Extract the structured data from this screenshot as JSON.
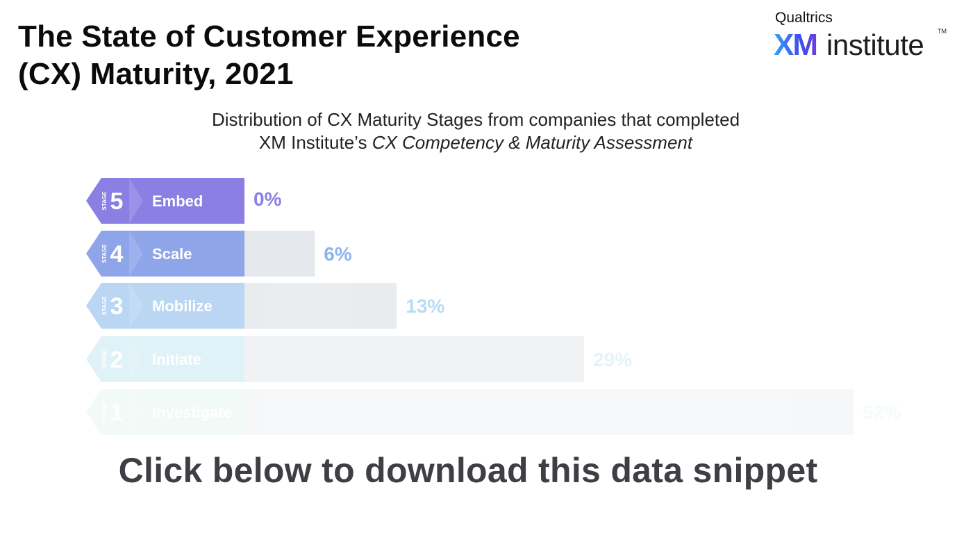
{
  "title": {
    "line1": "The State of Customer Experience",
    "line2": "(CX) Maturity, 2021"
  },
  "logo": {
    "brand": "Qualtrics",
    "xm": "XM",
    "name": "institute",
    "tm": "TM"
  },
  "subtitle": {
    "line1": "Distribution of CX Maturity Stages from companies that completed",
    "line2_prefix": "XM Institute’s ",
    "line2_italic": "CX Competency & Maturity Assessment"
  },
  "chart_data": {
    "type": "bar",
    "orientation": "horizontal",
    "categories": [
      "Embed",
      "Scale",
      "Mobilize",
      "Initiate",
      "Investigate"
    ],
    "stages": [
      5,
      4,
      3,
      2,
      1
    ],
    "stage_tag": "STAGE",
    "values": [
      0,
      6,
      13,
      29,
      52
    ],
    "value_labels": [
      "0%",
      "6%",
      "13%",
      "29%",
      "52%"
    ],
    "unit": "%",
    "xlim": [
      0,
      52
    ],
    "colors": {
      "tab": [
        "#8b7fe4",
        "#8fa5ea",
        "#a9cdf0",
        "#c5e8f1",
        "#d3efe8"
      ],
      "label": [
        "#8c80e6",
        "#8fb3ec",
        "#a9d3ef",
        "#cdebf2",
        "#dff2ed"
      ],
      "bar": "#e4e8ec"
    },
    "fade": [
      1.0,
      1.0,
      0.8,
      0.55,
      0.3
    ]
  },
  "cta": "Click below to download this data snippet"
}
